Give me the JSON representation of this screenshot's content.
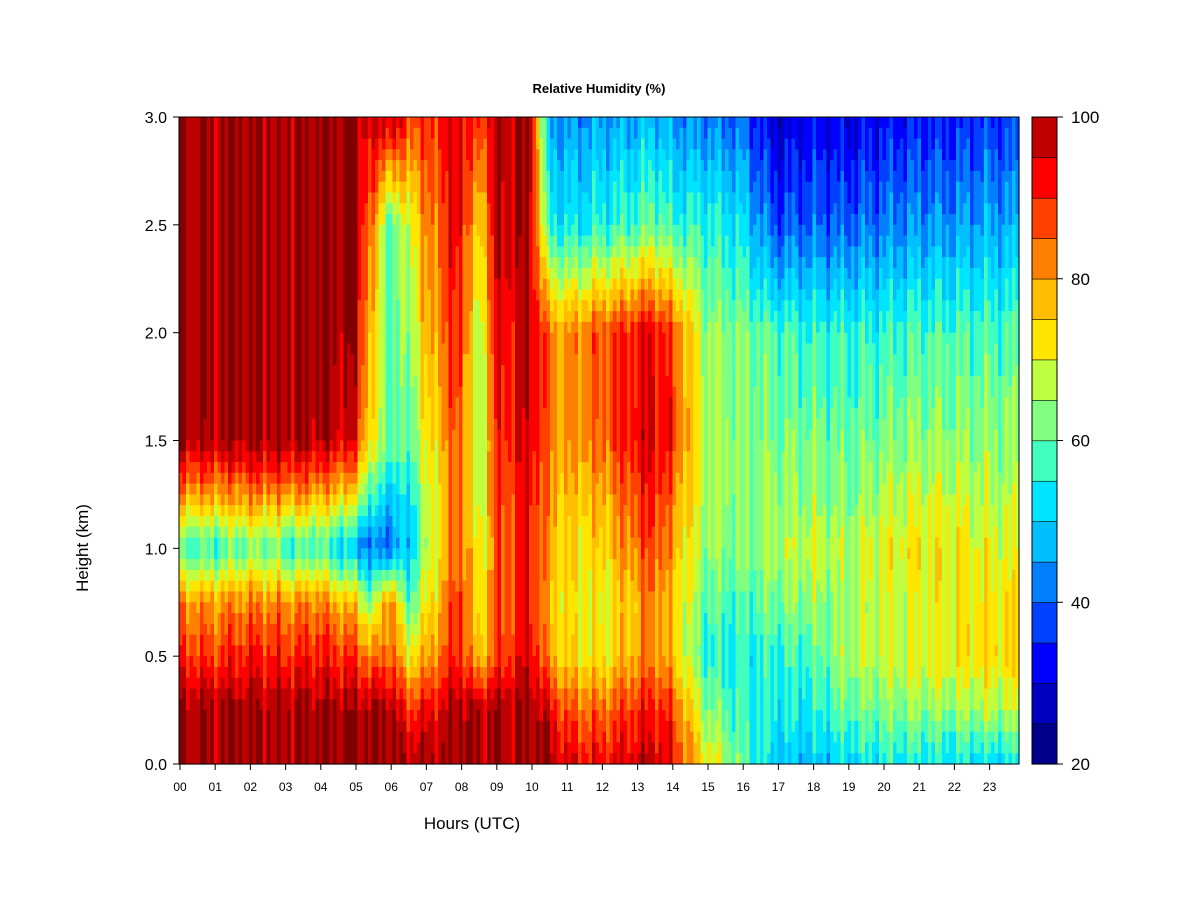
{
  "chart_data": {
    "type": "heatmap",
    "title": "Relative Humidity (%)",
    "xlabel": "Hours (UTC)",
    "ylabel": "Height (km)",
    "xlim": [
      0,
      23.9
    ],
    "ylim": [
      0,
      3.0
    ],
    "x_ticks": [
      "00",
      "01",
      "02",
      "03",
      "04",
      "05",
      "06",
      "07",
      "08",
      "09",
      "10",
      "11",
      "12",
      "13",
      "14",
      "15",
      "16",
      "17",
      "18",
      "19",
      "20",
      "21",
      "22",
      "23"
    ],
    "y_ticks": [
      "0.0",
      "0.5",
      "1.0",
      "1.5",
      "2.0",
      "2.5",
      "3.0"
    ],
    "colorbar": {
      "min": 20,
      "max": 100,
      "step": 5,
      "tick_labels": [
        "20",
        "40",
        "60",
        "80",
        "100"
      ],
      "colors": [
        "#00008B",
        "#0000BF",
        "#0000FF",
        "#0040FF",
        "#0080FF",
        "#00BFFF",
        "#00E5FF",
        "#40FFBF",
        "#80FF80",
        "#BFFF40",
        "#FFE600",
        "#FFBF00",
        "#FF8000",
        "#FF4000",
        "#FF0000",
        "#BF0000",
        "#800000"
      ]
    },
    "rh_grid": {
      "hours": [
        0,
        1,
        2,
        3,
        4,
        5,
        5.5,
        6,
        6.5,
        7,
        8,
        8.5,
        9,
        10,
        10.5,
        11,
        12,
        13,
        13.5,
        14,
        15,
        16,
        17,
        18,
        19,
        20,
        21,
        22,
        23,
        23.9
      ],
      "heights_km": [
        0,
        0.25,
        0.5,
        0.75,
        1.0,
        1.25,
        1.5,
        2.0,
        2.5,
        3.0
      ],
      "values": [
        [
          100,
          100,
          90,
          82,
          58,
          82,
          100,
          100,
          100,
          100
        ],
        [
          100,
          100,
          88,
          80,
          56,
          80,
          98,
          100,
          100,
          100
        ],
        [
          100,
          100,
          92,
          83,
          62,
          83,
          100,
          100,
          100,
          100
        ],
        [
          100,
          100,
          90,
          82,
          57,
          82,
          100,
          100,
          100,
          100
        ],
        [
          100,
          100,
          92,
          82,
          57,
          80,
          99,
          100,
          100,
          100
        ],
        [
          100,
          100,
          88,
          76,
          48,
          74,
          94,
          100,
          100,
          100
        ],
        [
          100,
          100,
          82,
          62,
          40,
          56,
          70,
          75,
          82,
          95
        ],
        [
          100,
          100,
          86,
          85,
          42,
          50,
          62,
          58,
          58,
          100
        ],
        [
          100,
          90,
          72,
          58,
          48,
          52,
          60,
          64,
          68,
          90
        ],
        [
          100,
          92,
          78,
          70,
          64,
          66,
          70,
          76,
          80,
          88
        ],
        [
          100,
          100,
          92,
          90,
          88,
          86,
          88,
          92,
          95,
          96
        ],
        [
          100,
          98,
          75,
          70,
          68,
          66,
          62,
          64,
          72,
          88
        ],
        [
          100,
          100,
          86,
          84,
          84,
          86,
          88,
          92,
          96,
          98
        ],
        [
          100,
          100,
          96,
          92,
          92,
          94,
          96,
          98,
          99,
          100
        ],
        [
          100,
          96,
          80,
          78,
          80,
          82,
          84,
          84,
          56,
          46
        ],
        [
          95,
          86,
          74,
          72,
          74,
          76,
          80,
          80,
          52,
          44
        ],
        [
          92,
          84,
          72,
          70,
          74,
          78,
          84,
          86,
          55,
          45
        ],
        [
          96,
          90,
          80,
          78,
          84,
          88,
          94,
          92,
          58,
          46
        ],
        [
          97,
          92,
          82,
          84,
          88,
          92,
          96,
          94,
          62,
          48
        ],
        [
          94,
          88,
          78,
          76,
          80,
          84,
          90,
          88,
          56,
          44
        ],
        [
          72,
          64,
          56,
          60,
          64,
          66,
          66,
          64,
          56,
          42
        ],
        [
          60,
          56,
          54,
          58,
          62,
          64,
          64,
          62,
          52,
          40
        ],
        [
          50,
          54,
          56,
          62,
          66,
          64,
          62,
          58,
          38,
          28
        ],
        [
          48,
          54,
          58,
          64,
          68,
          64,
          62,
          56,
          40,
          32
        ],
        [
          52,
          60,
          66,
          64,
          66,
          62,
          60,
          56,
          40,
          30
        ],
        [
          54,
          62,
          68,
          68,
          70,
          66,
          62,
          56,
          42,
          32
        ],
        [
          54,
          64,
          70,
          70,
          72,
          68,
          64,
          58,
          44,
          34
        ],
        [
          52,
          64,
          72,
          72,
          72,
          68,
          64,
          58,
          44,
          34
        ],
        [
          52,
          66,
          74,
          72,
          70,
          66,
          64,
          58,
          46,
          36
        ],
        [
          52,
          66,
          74,
          72,
          70,
          66,
          64,
          58,
          46,
          36
        ]
      ]
    }
  }
}
